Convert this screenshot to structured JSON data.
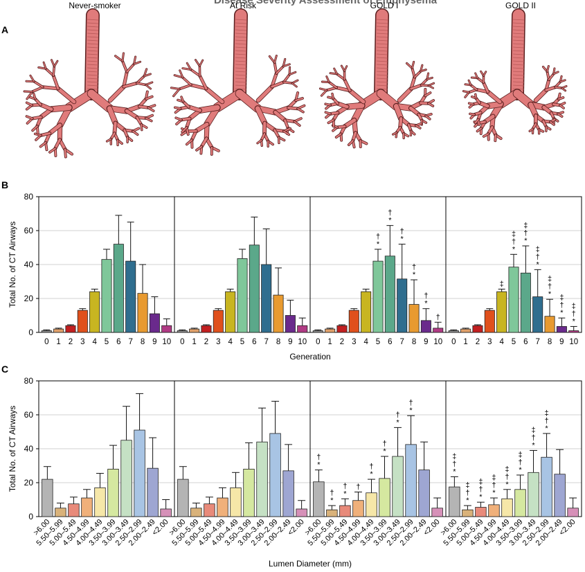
{
  "figure": {
    "top_header_text": "Disease Severity Assessment of Emphysema",
    "panel_letters": [
      "A",
      "B",
      "C"
    ],
    "group_labels": [
      "Never-smoker",
      "At Risk",
      "GOLD I",
      "GOLD II"
    ]
  },
  "colors": {
    "tree": "#e07b7b",
    "tree_outline": "#5a1f1f",
    "gen": [
      "#8a8a8a",
      "#e0a06a",
      "#c21f20",
      "#e0501c",
      "#c8b521",
      "#7fc79a",
      "#5ba88a",
      "#2f6e8f",
      "#e89a30",
      "#6a2a8c",
      "#b03a84"
    ],
    "diam": [
      "#b4b4b4",
      "#d9b27a",
      "#e88a7a",
      "#f0b07a",
      "#f6e7a8",
      "#d5e8a0",
      "#c5e1c4",
      "#a8c4e4",
      "#9ea6d2",
      "#d690b8"
    ]
  },
  "chart_data": [
    {
      "id": "B",
      "type": "bar",
      "title": "",
      "ylabel": "Total No. of CT Airways",
      "xlabel": "Generation",
      "ylim": [
        0,
        80
      ],
      "yticks": [
        0,
        20,
        40,
        60,
        80
      ],
      "grid": true,
      "categories": [
        "0",
        "1",
        "2",
        "3",
        "4",
        "5",
        "6",
        "7",
        "8",
        "9",
        "10"
      ],
      "series": [
        {
          "name": "Never-smoker",
          "values": [
            1,
            2,
            4,
            13,
            24,
            43,
            52,
            42,
            23,
            11,
            4
          ],
          "errors": [
            0.5,
            0.5,
            0.5,
            1,
            1.5,
            6,
            17,
            23,
            17,
            10,
            4
          ],
          "marks": [
            "",
            "",
            "",
            "",
            "",
            "",
            "",
            "",
            "",
            "",
            ""
          ]
        },
        {
          "name": "At Risk",
          "values": [
            1,
            2,
            4,
            13,
            24,
            43.5,
            51.5,
            40,
            22,
            10,
            4
          ],
          "errors": [
            0.5,
            0.5,
            0.5,
            1,
            1.5,
            5.5,
            16.5,
            21,
            16,
            9,
            4.5
          ],
          "marks": [
            "",
            "",
            "",
            "",
            "",
            "",
            "",
            "",
            "",
            "",
            ""
          ]
        },
        {
          "name": "GOLD I",
          "values": [
            1,
            2,
            4,
            13,
            24,
            42,
            45,
            31.5,
            16.5,
            7,
            2.5
          ],
          "errors": [
            0.5,
            0.5,
            0.5,
            1,
            1.5,
            7,
            18,
            20.5,
            14.5,
            7,
            3.5
          ],
          "marks": [
            "",
            "",
            "",
            "",
            "",
            "*\n†",
            "*\n†",
            "*\n†",
            "*\n†",
            "*\n†",
            "†"
          ]
        },
        {
          "name": "GOLD II",
          "values": [
            1,
            2,
            4,
            13,
            24,
            38.5,
            35,
            21,
            9.5,
            3.5,
            1
          ],
          "errors": [
            0.5,
            0.5,
            0.5,
            1,
            1.5,
            7.5,
            16,
            16,
            10,
            5,
            2.5
          ],
          "marks": [
            "",
            "",
            "",
            "",
            "‡",
            "*\n†\n‡",
            "*\n†\n‡",
            "*\n†\n‡",
            "*\n†\n‡",
            "*\n†\n‡",
            "*\n†\n‡"
          ]
        }
      ]
    },
    {
      "id": "C",
      "type": "bar",
      "title": "",
      "ylabel": "Total No. of CT Airways",
      "xlabel": "Lumen Diameter (mm)",
      "ylim": [
        0,
        80
      ],
      "yticks": [
        0,
        20,
        40,
        60,
        80
      ],
      "grid": true,
      "categories": [
        ">6.00",
        "5.50–5.99",
        "5.00–5.49",
        "4.50–4.99",
        "4.00–4.49",
        "3.50–3.99",
        "3.00–3.49",
        "2.50–2.99",
        "2.00–2.49",
        "<2.00"
      ],
      "series": [
        {
          "name": "Never-smoker",
          "values": [
            22,
            5,
            7.5,
            11,
            17,
            28,
            45,
            51,
            28.5,
            4.5
          ],
          "errors": [
            7.5,
            3,
            4,
            5,
            8.5,
            14,
            20,
            21.5,
            18,
            5.5
          ],
          "marks": [
            "",
            "",
            "",
            "",
            "",
            "",
            "",
            "",
            "",
            ""
          ]
        },
        {
          "name": "At Risk",
          "values": [
            22,
            5,
            7.5,
            11,
            17,
            28,
            44,
            49,
            27,
            4.5
          ],
          "errors": [
            7.5,
            3,
            4,
            6,
            9,
            15.5,
            20,
            19,
            15.5,
            5
          ],
          "marks": [
            "",
            "",
            "",
            "",
            "",
            "",
            "",
            "",
            "",
            ""
          ]
        },
        {
          "name": "GOLD I",
          "values": [
            20.5,
            4,
            6.5,
            9.5,
            14,
            22.5,
            35.5,
            42.5,
            27.5,
            5
          ],
          "errors": [
            7,
            2.5,
            4,
            5,
            8,
            13,
            17,
            17,
            16.5,
            6
          ],
          "marks": [
            "*\n†",
            "*\n†",
            "*\n†",
            "†",
            "*\n†",
            "*\n†",
            "*\n†",
            "*\n†",
            "",
            ""
          ]
        },
        {
          "name": "GOLD II",
          "values": [
            17.5,
            4,
            5.5,
            7,
            10.5,
            16,
            26,
            35,
            25,
            5
          ],
          "errors": [
            6,
            2.5,
            3,
            4,
            5.5,
            8.5,
            13,
            14,
            14.5,
            6
          ],
          "marks": [
            "*\n†\n‡",
            "*\n†\n‡",
            "*\n†\n‡",
            "*\n†\n‡",
            "*\n†\n‡",
            "*\n†\n‡",
            "*\n†\n‡",
            "*\n†\n‡",
            "",
            ""
          ]
        }
      ]
    }
  ]
}
